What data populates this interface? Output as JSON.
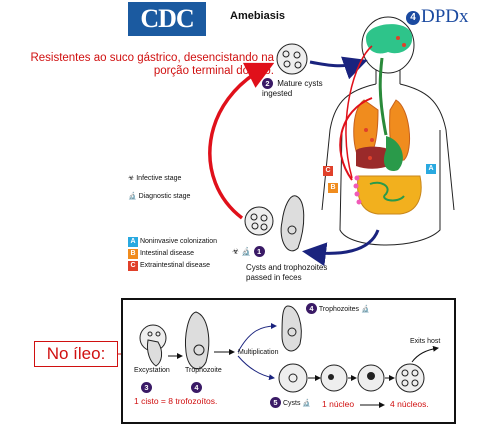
{
  "header": {
    "cdc_logo": "CDC",
    "title": "Amebiasis",
    "dpdx_logo": "DPDx",
    "dpdx_badge": "4"
  },
  "annotations": {
    "note_red": "Resistentes ao suco gástrico, desencistando na porção terminal do íleo.",
    "no_ileo": "No íleo:",
    "cyst_to_trophozoites": "1 cisto = 8 trofozoítos.",
    "one_nucleus": "1 núcleo",
    "four_nuclei": "4 núcleos."
  },
  "steps": {
    "step1": {
      "num": "1",
      "label": "Cysts and trophozoites passed in feces"
    },
    "step2": {
      "num": "2",
      "label": "Mature cysts ingested"
    },
    "step3": {
      "num": "3",
      "label": "Excystation"
    },
    "step4a": {
      "num": "4",
      "label": "Trophozoite"
    },
    "step4b": {
      "num": "4",
      "label": "Trophozoites"
    },
    "step5": {
      "num": "5",
      "label": "Cysts"
    }
  },
  "labels": {
    "multiplication": "Multiplication",
    "exits_host": "Exits host",
    "infective_stage": "Infective stage",
    "diagnostic_stage": "Diagnostic stage"
  },
  "legend": [
    {
      "key": "A",
      "label": "Noninvasive colonization",
      "color": "#29a9e0"
    },
    {
      "key": "B",
      "label": "Intestinal disease",
      "color": "#f08c1e"
    },
    {
      "key": "C",
      "label": "Extraintestinal disease",
      "color": "#e0402a"
    }
  ],
  "body_markers": [
    {
      "key": "C",
      "color": "#e0402a"
    },
    {
      "key": "B",
      "color": "#f08c1e"
    },
    {
      "key": "A",
      "color": "#29a9e0"
    }
  ],
  "colors": {
    "cdc_blue": "#1b5aa0",
    "arrow_red": "#e0101a",
    "arrow_navy": "#1a237e",
    "note_red": "#d01010",
    "step_purple": "#3a1a66"
  }
}
